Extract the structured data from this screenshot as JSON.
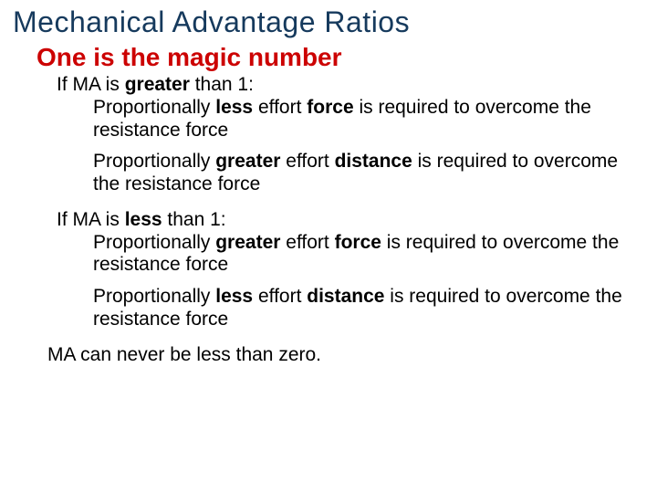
{
  "colors": {
    "title": "#163a5d",
    "subtitle": "#cc0202",
    "body": "#000000",
    "background": "#ffffff"
  },
  "title": "Mechanical Advantage Ratios",
  "subtitle": "One is the magic number",
  "gt1": {
    "head_pre": "If MA is ",
    "head_bold": "greater",
    "head_post": " than 1:",
    "force_a": "Proportionally ",
    "force_b": "less",
    "force_c": " effort ",
    "force_d": "force",
    "force_e": " is required to overcome the resistance force",
    "dist_a": "Proportionally ",
    "dist_b": "greater",
    "dist_c": " effort ",
    "dist_d": "distance",
    "dist_e": " is required to overcome the resistance force"
  },
  "lt1": {
    "head_pre": "If MA is ",
    "head_bold": "less",
    "head_post": " than 1:",
    "force_a": "Proportionally ",
    "force_b": "greater",
    "force_c": " effort ",
    "force_d": "force",
    "force_e": " is required to overcome the resistance force",
    "dist_a": "Proportionally ",
    "dist_b": "less",
    "dist_c": " effort ",
    "dist_d": "distance",
    "dist_e": " is required to overcome the resistance force"
  },
  "final": "MA can never be less than zero."
}
